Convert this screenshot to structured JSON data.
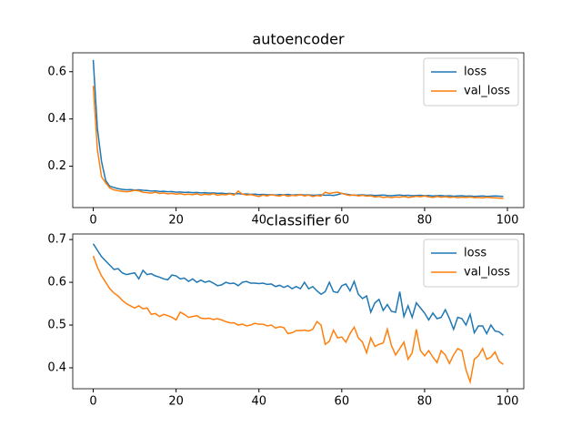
{
  "chart_data": [
    {
      "type": "line",
      "title": "autoencoder",
      "x": [
        0,
        1,
        2,
        3,
        4,
        5,
        6,
        7,
        8,
        9,
        10,
        11,
        12,
        13,
        14,
        15,
        16,
        17,
        18,
        19,
        20,
        21,
        22,
        23,
        24,
        25,
        26,
        27,
        28,
        29,
        30,
        31,
        32,
        33,
        34,
        35,
        36,
        37,
        38,
        39,
        40,
        41,
        42,
        43,
        44,
        45,
        46,
        47,
        48,
        49,
        50,
        51,
        52,
        53,
        54,
        55,
        56,
        57,
        58,
        59,
        60,
        61,
        62,
        63,
        64,
        65,
        66,
        67,
        68,
        69,
        70,
        71,
        72,
        73,
        74,
        75,
        76,
        77,
        78,
        79,
        80,
        81,
        82,
        83,
        84,
        85,
        86,
        87,
        88,
        89,
        90,
        91,
        92,
        93,
        94,
        95,
        96,
        97,
        98,
        99
      ],
      "series": [
        {
          "name": "loss",
          "color": "#1f77b4",
          "values": [
            0.65,
            0.36,
            0.22,
            0.14,
            0.115,
            0.11,
            0.105,
            0.102,
            0.1,
            0.101,
            0.099,
            0.1,
            0.098,
            0.097,
            0.095,
            0.096,
            0.093,
            0.094,
            0.092,
            0.093,
            0.09,
            0.091,
            0.089,
            0.09,
            0.088,
            0.089,
            0.087,
            0.088,
            0.086,
            0.087,
            0.085,
            0.086,
            0.084,
            0.085,
            0.083,
            0.084,
            0.082,
            0.083,
            0.081,
            0.082,
            0.08,
            0.081,
            0.079,
            0.08,
            0.078,
            0.08,
            0.079,
            0.081,
            0.078,
            0.079,
            0.08,
            0.078,
            0.079,
            0.077,
            0.078,
            0.079,
            0.077,
            0.078,
            0.076,
            0.08,
            0.085,
            0.082,
            0.079,
            0.077,
            0.078,
            0.079,
            0.077,
            0.078,
            0.076,
            0.077,
            0.078,
            0.076,
            0.075,
            0.077,
            0.078,
            0.076,
            0.077,
            0.075,
            0.076,
            0.077,
            0.075,
            0.076,
            0.074,
            0.075,
            0.076,
            0.074,
            0.075,
            0.073,
            0.074,
            0.075,
            0.073,
            0.074,
            0.072,
            0.073,
            0.074,
            0.072,
            0.073,
            0.074,
            0.073,
            0.072
          ]
        },
        {
          "name": "val_loss",
          "color": "#ff7f0e",
          "values": [
            0.54,
            0.27,
            0.155,
            0.13,
            0.108,
            0.1,
            0.096,
            0.094,
            0.092,
            0.094,
            0.098,
            0.096,
            0.09,
            0.088,
            0.086,
            0.09,
            0.085,
            0.087,
            0.083,
            0.085,
            0.082,
            0.084,
            0.08,
            0.082,
            0.08,
            0.083,
            0.078,
            0.082,
            0.079,
            0.084,
            0.077,
            0.081,
            0.079,
            0.083,
            0.078,
            0.095,
            0.082,
            0.078,
            0.08,
            0.076,
            0.072,
            0.078,
            0.074,
            0.08,
            0.076,
            0.074,
            0.079,
            0.073,
            0.077,
            0.075,
            0.08,
            0.074,
            0.078,
            0.072,
            0.076,
            0.074,
            0.09,
            0.085,
            0.088,
            0.09,
            0.085,
            0.08,
            0.076,
            0.079,
            0.074,
            0.077,
            0.073,
            0.075,
            0.07,
            0.072,
            0.068,
            0.07,
            0.067,
            0.07,
            0.069,
            0.072,
            0.068,
            0.07,
            0.073,
            0.071,
            0.074,
            0.07,
            0.068,
            0.072,
            0.069,
            0.071,
            0.068,
            0.07,
            0.067,
            0.069,
            0.068,
            0.07,
            0.067,
            0.068,
            0.066,
            0.069,
            0.067,
            0.066,
            0.065,
            0.064
          ]
        }
      ],
      "xlim": [
        -4.95,
        103.95
      ],
      "xticks": [
        0,
        20,
        40,
        60,
        80,
        100
      ],
      "ylim": [
        0.025,
        0.68
      ],
      "yticks": [
        0.2,
        0.4,
        0.6
      ],
      "legend": "upper right"
    },
    {
      "type": "line",
      "title": "classifier",
      "x": [
        0,
        1,
        2,
        3,
        4,
        5,
        6,
        7,
        8,
        9,
        10,
        11,
        12,
        13,
        14,
        15,
        16,
        17,
        18,
        19,
        20,
        21,
        22,
        23,
        24,
        25,
        26,
        27,
        28,
        29,
        30,
        31,
        32,
        33,
        34,
        35,
        36,
        37,
        38,
        39,
        40,
        41,
        42,
        43,
        44,
        45,
        46,
        47,
        48,
        49,
        50,
        51,
        52,
        53,
        54,
        55,
        56,
        57,
        58,
        59,
        60,
        61,
        62,
        63,
        64,
        65,
        66,
        67,
        68,
        69,
        70,
        71,
        72,
        73,
        74,
        75,
        76,
        77,
        78,
        79,
        80,
        81,
        82,
        83,
        84,
        85,
        86,
        87,
        88,
        89,
        90,
        91,
        92,
        93,
        94,
        95,
        96,
        97,
        98,
        99
      ],
      "series": [
        {
          "name": "loss",
          "color": "#1f77b4",
          "values": [
            0.69,
            0.675,
            0.66,
            0.65,
            0.64,
            0.63,
            0.632,
            0.622,
            0.618,
            0.62,
            0.622,
            0.608,
            0.628,
            0.618,
            0.62,
            0.615,
            0.612,
            0.608,
            0.606,
            0.617,
            0.615,
            0.608,
            0.61,
            0.602,
            0.608,
            0.6,
            0.605,
            0.6,
            0.603,
            0.598,
            0.592,
            0.594,
            0.6,
            0.597,
            0.598,
            0.592,
            0.6,
            0.602,
            0.598,
            0.598,
            0.597,
            0.598,
            0.595,
            0.596,
            0.59,
            0.593,
            0.588,
            0.592,
            0.585,
            0.59,
            0.585,
            0.6,
            0.585,
            0.59,
            0.58,
            0.572,
            0.578,
            0.6,
            0.578,
            0.576,
            0.592,
            0.596,
            0.58,
            0.602,
            0.572,
            0.562,
            0.568,
            0.53,
            0.552,
            0.56,
            0.534,
            0.548,
            0.532,
            0.53,
            0.578,
            0.52,
            0.545,
            0.518,
            0.552,
            0.54,
            0.528,
            0.512,
            0.528,
            0.515,
            0.518,
            0.536,
            0.515,
            0.49,
            0.518,
            0.515,
            0.5,
            0.525,
            0.482,
            0.498,
            0.498,
            0.48,
            0.5,
            0.486,
            0.484,
            0.476
          ]
        },
        {
          "name": "val_loss",
          "color": "#ff7f0e",
          "values": [
            0.662,
            0.635,
            0.615,
            0.6,
            0.585,
            0.575,
            0.568,
            0.558,
            0.55,
            0.545,
            0.54,
            0.545,
            0.538,
            0.54,
            0.525,
            0.527,
            0.52,
            0.525,
            0.522,
            0.518,
            0.512,
            0.53,
            0.525,
            0.518,
            0.52,
            0.522,
            0.516,
            0.515,
            0.516,
            0.513,
            0.515,
            0.512,
            0.508,
            0.505,
            0.505,
            0.5,
            0.502,
            0.498,
            0.5,
            0.504,
            0.502,
            0.502,
            0.498,
            0.5,
            0.493,
            0.496,
            0.494,
            0.48,
            0.482,
            0.487,
            0.487,
            0.488,
            0.486,
            0.49,
            0.508,
            0.5,
            0.455,
            0.462,
            0.488,
            0.47,
            0.472,
            0.46,
            0.48,
            0.495,
            0.47,
            0.46,
            0.435,
            0.47,
            0.45,
            0.455,
            0.458,
            0.49,
            0.452,
            0.43,
            0.445,
            0.46,
            0.42,
            0.435,
            0.49,
            0.44,
            0.428,
            0.44,
            0.425,
            0.412,
            0.44,
            0.43,
            0.41,
            0.43,
            0.445,
            0.44,
            0.395,
            0.367,
            0.42,
            0.428,
            0.445,
            0.42,
            0.425,
            0.437,
            0.415,
            0.408
          ]
        }
      ],
      "xlim": [
        -4.95,
        103.95
      ],
      "xticks": [
        0,
        20,
        40,
        60,
        80,
        100
      ],
      "ylim": [
        0.351,
        0.713
      ],
      "yticks": [
        0.4,
        0.5,
        0.6,
        0.7
      ],
      "legend": "upper right"
    }
  ]
}
